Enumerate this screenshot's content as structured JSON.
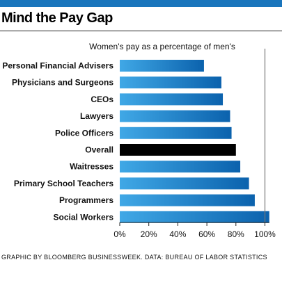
{
  "header": {
    "title": "Mind the Pay Gap",
    "accent_color": "#1a75bc"
  },
  "chart_data": {
    "type": "bar",
    "orientation": "horizontal",
    "title": "Women's pay as a percentage of men's",
    "xlabel": "",
    "ylabel": "",
    "categories": [
      "Personal Financial Advisers",
      "Physicians and Surgeons",
      "CEOs",
      "Lawyers",
      "Police Officers",
      "Overall",
      "Waitresses",
      "Primary School Teachers",
      "Programmers",
      "Social Workers"
    ],
    "values": [
      58,
      70,
      71,
      76,
      77,
      80,
      83,
      89,
      93,
      103
    ],
    "highlight": "Overall",
    "highlight_color": "#000000",
    "bar_color_start": "#40a8e6",
    "bar_color_end": "#0b62ad",
    "reference_line": 100,
    "xlim": [
      0,
      103
    ],
    "xticks": [
      0,
      20,
      40,
      60,
      80,
      100
    ],
    "xtick_labels": [
      "0%",
      "20%",
      "40%",
      "60%",
      "80%",
      "100%"
    ],
    "grid": false,
    "legend": "none"
  },
  "footer": {
    "source": "GRAPHIC BY BLOOMBERG BUSINESSWEEK. DATA: BUREAU OF LABOR STATISTICS"
  }
}
